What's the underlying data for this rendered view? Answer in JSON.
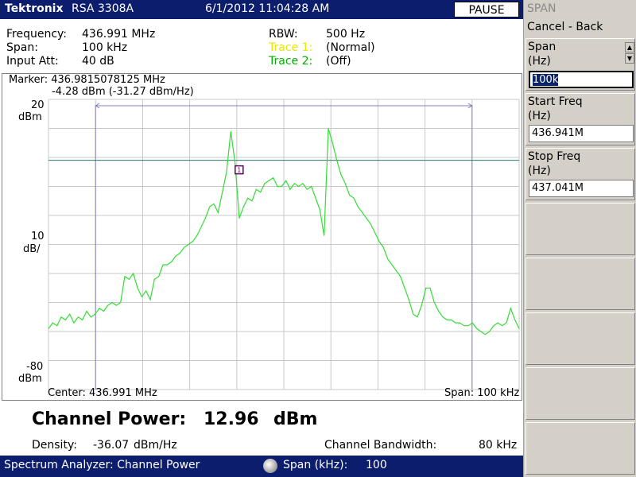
{
  "titlebar": {
    "brand": "Tektronix",
    "model": "RSA 3308A",
    "datetime": "6/1/2012 11:04:28 AM",
    "pause_label": "PAUSE"
  },
  "info": {
    "frequency_label": "Frequency:",
    "frequency_value": "436.991 MHz",
    "span_label": "Span:",
    "span_value": "100 kHz",
    "input_att_label": "Input Att:",
    "input_att_value": "40 dB",
    "rbw_label": "RBW:",
    "rbw_value": "500 Hz",
    "trace1_label": "Trace 1:",
    "trace1_value": "(Normal)",
    "trace2_label": "Trace 2:",
    "trace2_value": "(Off)"
  },
  "plot": {
    "marker_line1": "Marker: 436.9815078125 MHz",
    "marker_line2": "-4.28 dBm (-31.27 dBm/Hz)",
    "ref_level": "20",
    "ref_unit": "dBm",
    "scale_value": "10",
    "scale_unit": "dB/",
    "bottom_level": "-80",
    "bottom_unit": "dBm",
    "center_label": "Center: 436.991 MHz",
    "span_label": "Span: 100 kHz"
  },
  "chart_data": {
    "type": "line",
    "series": [
      {
        "values": [
          -59,
          -57,
          -58,
          -55,
          -56,
          -54,
          -57,
          -55,
          -56,
          -53,
          -55,
          -54,
          -52,
          -53,
          -51,
          -50,
          -51,
          -50,
          -41,
          -42,
          -40,
          -45,
          -48,
          -46,
          -49,
          -42,
          -41,
          -37,
          -37,
          -36,
          -34,
          -33,
          -31,
          -30,
          -29,
          -27,
          -24,
          -21,
          -17,
          -16,
          -19,
          -12,
          -5,
          9,
          -2,
          -21,
          -17,
          -14,
          -15,
          -11,
          -12,
          -9,
          -8,
          -7,
          -10,
          -10,
          -8,
          -11,
          -9,
          -10,
          -9,
          -11,
          -10,
          -14,
          -18,
          -27,
          10,
          5,
          -1,
          -6,
          -9,
          -13,
          -14,
          -17,
          -19,
          -21,
          -23,
          -26,
          -29,
          -31,
          -35,
          -37,
          -39,
          -41,
          -45,
          -49,
          -54,
          -55,
          -51,
          -45,
          -45,
          -50,
          -53,
          -55,
          -56,
          -56,
          -57,
          -57,
          -58,
          -58,
          -57,
          -59,
          -60,
          -61,
          -60,
          -58,
          -57,
          -58,
          -57,
          -52,
          -56,
          -59
        ]
      }
    ],
    "x_range_mhz": [
      436.941,
      437.041
    ],
    "y_range_dbm": [
      -80,
      20
    ],
    "y_div_db": 10,
    "reference_line_dbm": -1,
    "marker": {
      "freq_mhz": 436.9815078125,
      "level_dbm": -4.28
    },
    "bandwidth_markers_mhz": [
      436.951,
      437.031
    ],
    "grid": true,
    "trace_color": "#33dd33"
  },
  "results": {
    "channel_power_label": "Channel Power:",
    "channel_power_value": "12.96",
    "channel_power_unit": "dBm",
    "density_label": "Density:",
    "density_value": "-36.07",
    "density_unit": "dBm/Hz",
    "bandwidth_label": "Channel Bandwidth:",
    "bandwidth_value": "80 kHz"
  },
  "statusbar": {
    "mode": "Spectrum Analyzer: Channel Power",
    "knob_label": "Span (kHz):",
    "knob_value": "100"
  },
  "panel": {
    "title": "SPAN",
    "cancel_back": "Cancel - Back",
    "span_label_1": "Span",
    "span_label_2": "(Hz)",
    "span_value": "100k",
    "start_label_1": "Start Freq",
    "start_label_2": "(Hz)",
    "start_value": "436.941M",
    "stop_label_1": "Stop Freq",
    "stop_label_2": "(Hz)",
    "stop_value": "437.041M"
  },
  "colors": {
    "titlebar_bg": "#0c1d6e",
    "trace": "#33dd33",
    "ref_line": "#2a7a6a",
    "bandwidth_marker": "#8080c0",
    "trace1_label": "#e8e800",
    "trace2_label": "#00b000"
  }
}
